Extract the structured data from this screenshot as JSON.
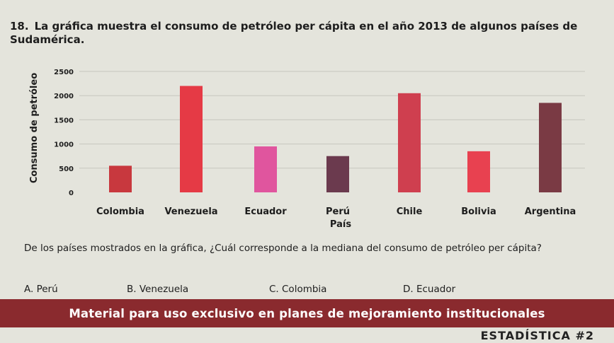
{
  "question": {
    "number": "18.",
    "text": "La gráfica muestra el consumo de petróleo per cápita en el año 2013 de algunos países de Sudamérica."
  },
  "chart_data": {
    "type": "bar",
    "categories": [
      "Colombia",
      "Venezuela",
      "Ecuador",
      "Perú",
      "Chile",
      "Bolivia",
      "Argentina"
    ],
    "values": [
      550,
      2200,
      950,
      750,
      2050,
      850,
      1850
    ],
    "colors": [
      "#c8383e",
      "#e53a45",
      "#e0559e",
      "#6b3a4e",
      "#cf3f4f",
      "#e84150",
      "#7a3a44"
    ],
    "xlabel": "País",
    "ylabel": "Consumo de petróleo",
    "yticks": [
      0,
      500,
      1000,
      1500,
      2000,
      2500
    ],
    "ylim": [
      0,
      2500
    ],
    "grid": true,
    "legend": "none"
  },
  "prompt": "De los países mostrados en la gráfica, ¿Cuál corresponde a la mediana del consumo de petróleo per cápita?",
  "options": [
    {
      "label": "A. Perú"
    },
    {
      "label": "B. Venezuela"
    },
    {
      "label": "C. Colombia"
    },
    {
      "label": "D. Ecuador"
    }
  ],
  "banner": "Material para uso exclusivo en planes de mejoramiento institucionales",
  "footer": "ESTADÍSTICA #2"
}
